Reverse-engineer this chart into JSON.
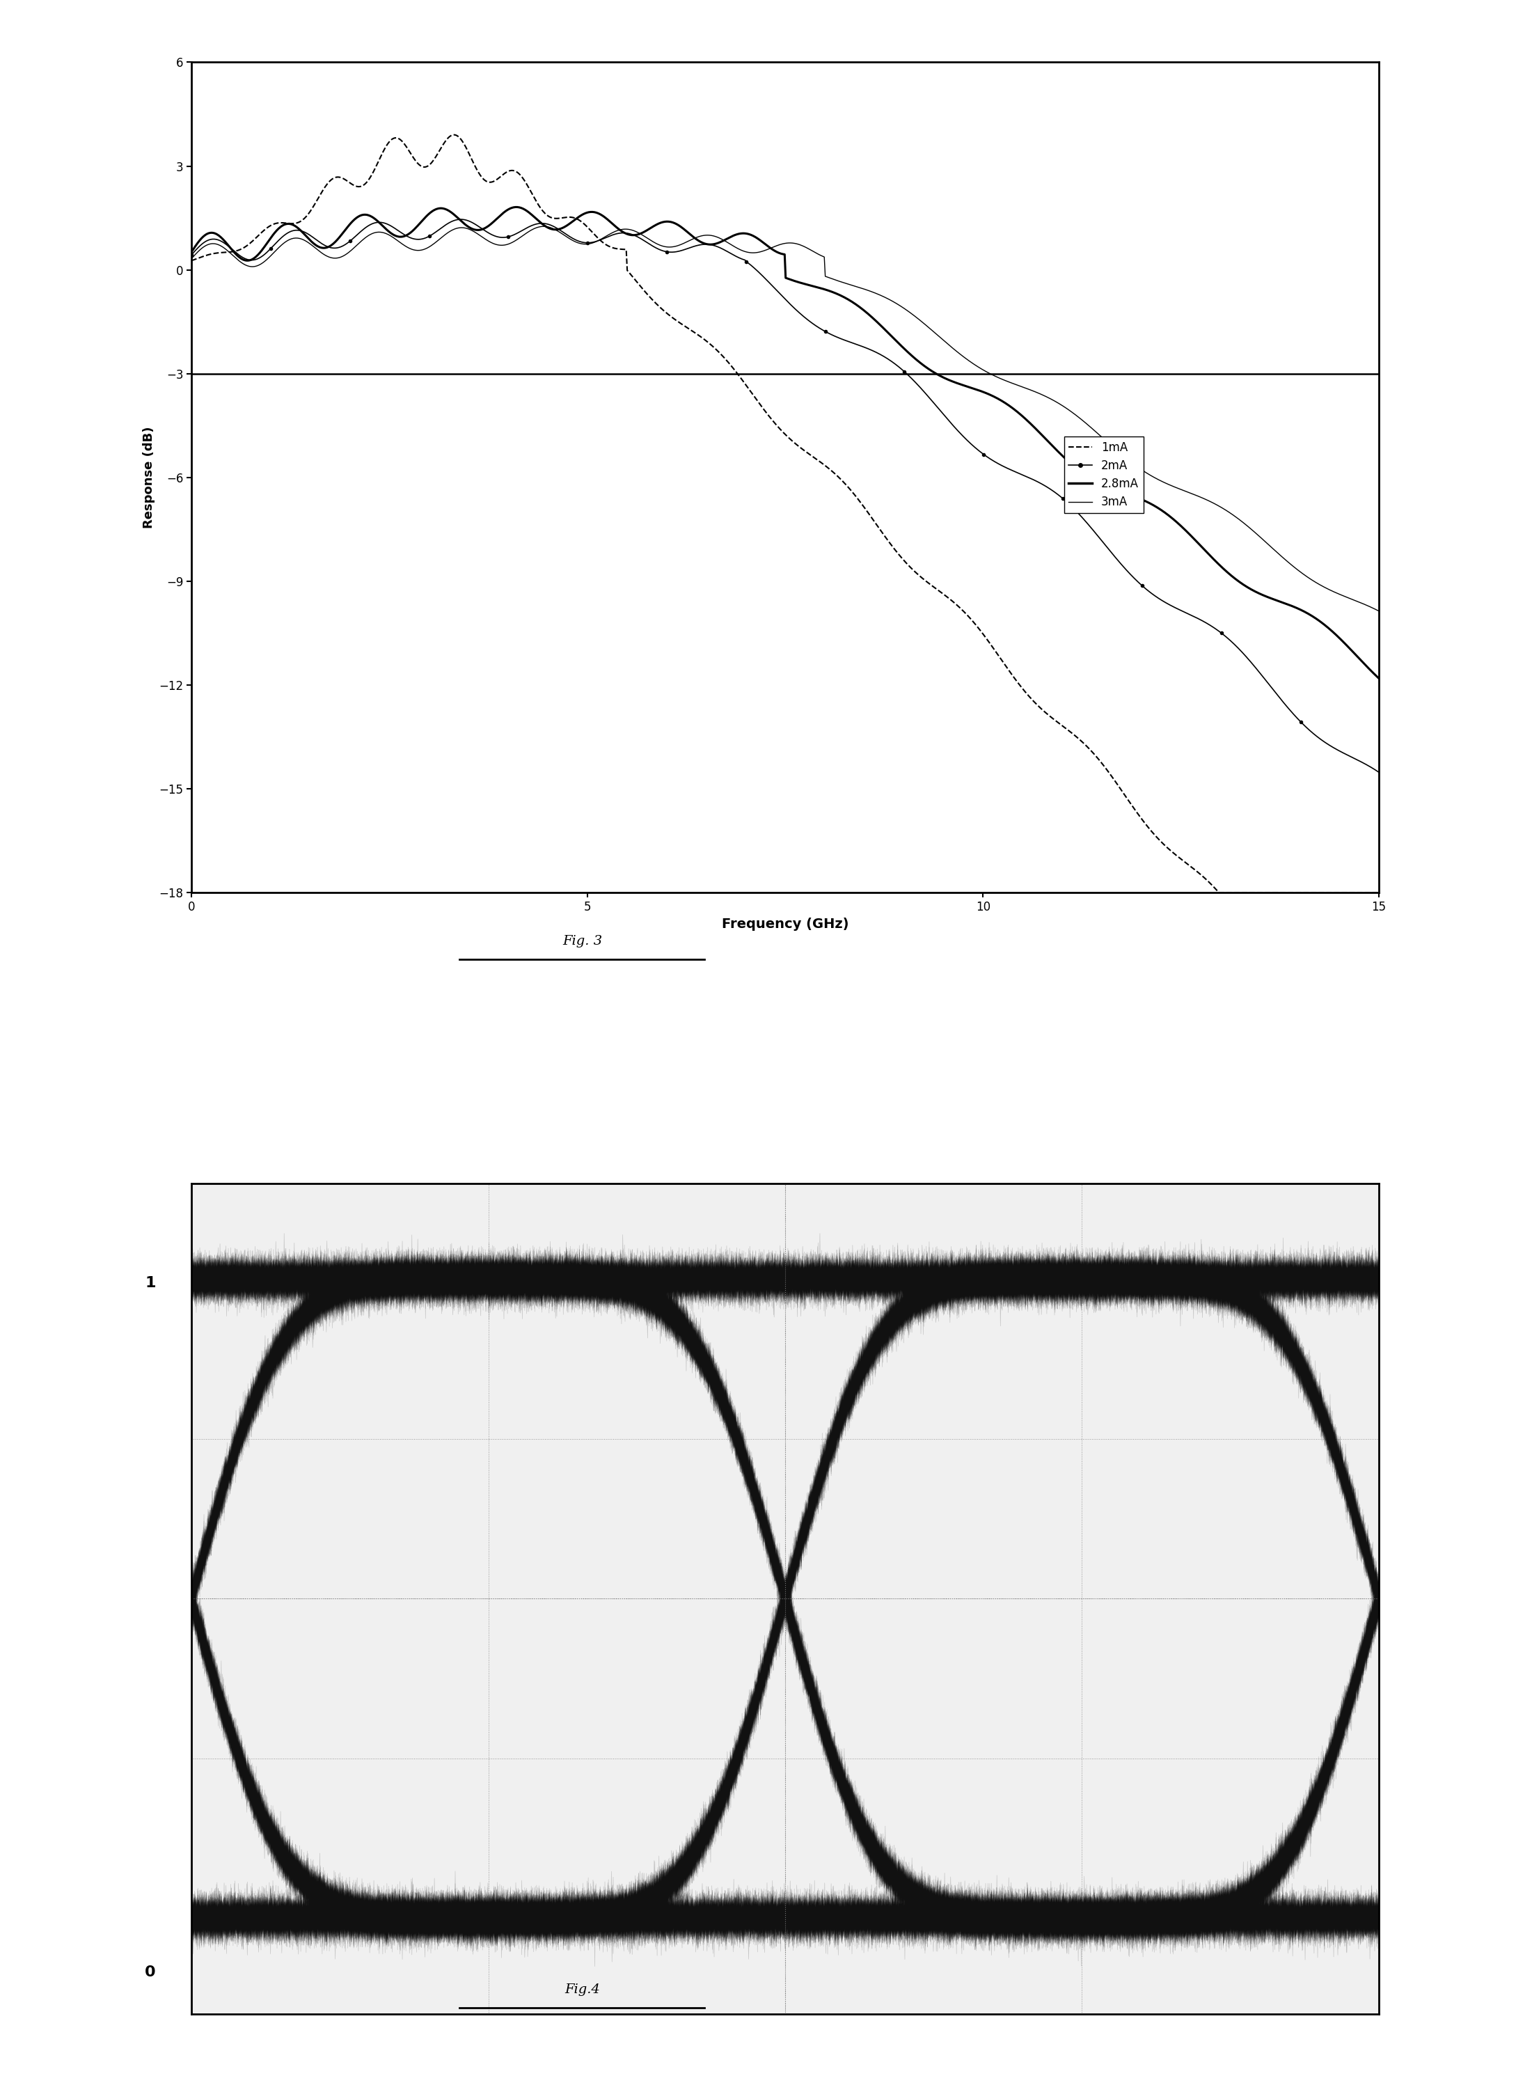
{
  "fig3": {
    "title": "Fig. 3",
    "xlabel": "Frequency (GHz)",
    "ylabel": "Response (dB)",
    "xlim": [
      0,
      15
    ],
    "ylim": [
      -18,
      6
    ],
    "yticks": [
      6,
      3,
      0,
      -3,
      -6,
      -9,
      -12,
      -15,
      -18
    ],
    "xticks": [
      0,
      5,
      10,
      15
    ],
    "hline_y": -3,
    "legend_labels": [
      "1mA",
      "2mA",
      "2.8mA",
      "3mA"
    ],
    "legend_styles": [
      "dashed",
      "solid_marker",
      "solid_thick",
      "solid_thin"
    ],
    "background_color": "#ffffff",
    "line_color": "#000000"
  },
  "fig4": {
    "title": "Fig.4",
    "label_1": "1",
    "label_0": "0",
    "background_color": "#ffffff",
    "eye_color": "#1a1a1a"
  }
}
